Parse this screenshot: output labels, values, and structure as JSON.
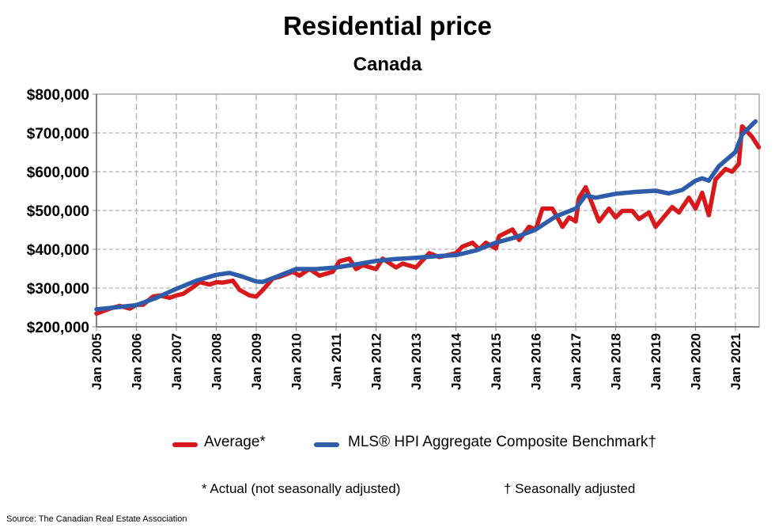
{
  "chart_data": {
    "type": "line",
    "title": "Residential price",
    "subtitle": "Canada",
    "xlabel": "",
    "ylabel": "",
    "ylim": [
      200000,
      800000
    ],
    "xlim": [
      "2005-01",
      "2021-08"
    ],
    "y_ticks": [
      "$200,000",
      "$300,000",
      "$400,000",
      "$500,000",
      "$600,000",
      "$700,000",
      "$800,000"
    ],
    "y_tick_values": [
      200000,
      300000,
      400000,
      500000,
      600000,
      700000,
      800000
    ],
    "x_ticks": [
      "Jan 2005",
      "Jan 2006",
      "Jan 2007",
      "Jan 2008",
      "Jan 2009",
      "Jan 2010",
      "Jan 2011",
      "Jan 2012",
      "Jan 2013",
      "Jan 2014",
      "Jan 2015",
      "Jan 2016",
      "Jan 2017",
      "Jan 2018",
      "Jan 2019",
      "Jan 2020",
      "Jan 2021"
    ],
    "grid": true,
    "legend_position": "bottom",
    "series": [
      {
        "name": "Average*",
        "color": "#d7191c",
        "points": [
          [
            "2005-01",
            234000
          ],
          [
            "2005-05",
            247000
          ],
          [
            "2005-08",
            254000
          ],
          [
            "2005-11",
            247000
          ],
          [
            "2006-01",
            257000
          ],
          [
            "2006-03",
            257000
          ],
          [
            "2006-06",
            278000
          ],
          [
            "2006-08",
            281000
          ],
          [
            "2006-11",
            275000
          ],
          [
            "2007-01",
            281000
          ],
          [
            "2007-03",
            285000
          ],
          [
            "2007-06",
            302000
          ],
          [
            "2007-08",
            315000
          ],
          [
            "2007-11",
            309000
          ],
          [
            "2008-01",
            315000
          ],
          [
            "2008-03",
            314000
          ],
          [
            "2008-06",
            319000
          ],
          [
            "2008-08",
            295000
          ],
          [
            "2008-11",
            281000
          ],
          [
            "2009-01",
            278000
          ],
          [
            "2009-03",
            295000
          ],
          [
            "2009-06",
            325000
          ],
          [
            "2009-08",
            329000
          ],
          [
            "2009-12",
            342000
          ],
          [
            "2010-02",
            332000
          ],
          [
            "2010-05",
            349000
          ],
          [
            "2010-08",
            332000
          ],
          [
            "2010-12",
            342000
          ],
          [
            "2011-02",
            369000
          ],
          [
            "2011-05",
            376000
          ],
          [
            "2011-07",
            349000
          ],
          [
            "2011-09",
            359000
          ],
          [
            "2012-01",
            349000
          ],
          [
            "2012-03",
            376000
          ],
          [
            "2012-07",
            353000
          ],
          [
            "2012-09",
            363000
          ],
          [
            "2013-01",
            353000
          ],
          [
            "2013-05",
            390000
          ],
          [
            "2013-08",
            380000
          ],
          [
            "2014-01",
            390000
          ],
          [
            "2014-03",
            407000
          ],
          [
            "2014-06",
            417000
          ],
          [
            "2014-08",
            400000
          ],
          [
            "2014-10",
            417000
          ],
          [
            "2015-01",
            402000
          ],
          [
            "2015-02",
            434000
          ],
          [
            "2015-06",
            451000
          ],
          [
            "2015-08",
            424000
          ],
          [
            "2015-11",
            458000
          ],
          [
            "2016-01",
            451000
          ],
          [
            "2016-03",
            505000
          ],
          [
            "2016-06",
            505000
          ],
          [
            "2016-09",
            458000
          ],
          [
            "2016-11",
            482000
          ],
          [
            "2017-01",
            472000
          ],
          [
            "2017-02",
            533000
          ],
          [
            "2017-04",
            560000
          ],
          [
            "2017-08",
            472000
          ],
          [
            "2017-11",
            505000
          ],
          [
            "2018-01",
            482000
          ],
          [
            "2018-03",
            499000
          ],
          [
            "2018-06",
            499000
          ],
          [
            "2018-08",
            478000
          ],
          [
            "2018-11",
            495000
          ],
          [
            "2019-01",
            458000
          ],
          [
            "2019-06",
            509000
          ],
          [
            "2019-08",
            495000
          ],
          [
            "2019-11",
            533000
          ],
          [
            "2020-01",
            505000
          ],
          [
            "2020-03",
            546000
          ],
          [
            "2020-05",
            488000
          ],
          [
            "2020-07",
            580000
          ],
          [
            "2020-10",
            607000
          ],
          [
            "2020-12",
            600000
          ],
          [
            "2021-02",
            620000
          ],
          [
            "2021-03",
            717000
          ],
          [
            "2021-06",
            690000
          ],
          [
            "2021-08",
            663000
          ]
        ]
      },
      {
        "name": "MLS® HPI Aggregate Composite Benchmark†",
        "color": "#2e5caa",
        "points": [
          [
            "2005-01",
            245000
          ],
          [
            "2006-01",
            256000
          ],
          [
            "2006-07",
            275000
          ],
          [
            "2007-01",
            298000
          ],
          [
            "2007-07",
            319000
          ],
          [
            "2008-01",
            334000
          ],
          [
            "2008-05",
            339000
          ],
          [
            "2008-09",
            329000
          ],
          [
            "2009-01",
            317000
          ],
          [
            "2009-03",
            316000
          ],
          [
            "2009-07",
            329000
          ],
          [
            "2010-01",
            349000
          ],
          [
            "2010-07",
            349000
          ],
          [
            "2011-01",
            353000
          ],
          [
            "2011-07",
            361000
          ],
          [
            "2012-01",
            370000
          ],
          [
            "2012-07",
            375000
          ],
          [
            "2013-01",
            378000
          ],
          [
            "2013-07",
            382000
          ],
          [
            "2014-01",
            385000
          ],
          [
            "2014-07",
            397000
          ],
          [
            "2015-01",
            417000
          ],
          [
            "2015-07",
            431000
          ],
          [
            "2016-01",
            451000
          ],
          [
            "2016-07",
            485000
          ],
          [
            "2017-01",
            505000
          ],
          [
            "2017-04",
            539000
          ],
          [
            "2017-07",
            533000
          ],
          [
            "2018-01",
            543000
          ],
          [
            "2018-07",
            548000
          ],
          [
            "2019-01",
            551000
          ],
          [
            "2019-05",
            544000
          ],
          [
            "2019-09",
            553000
          ],
          [
            "2020-01",
            577000
          ],
          [
            "2020-03",
            583000
          ],
          [
            "2020-05",
            577000
          ],
          [
            "2020-08",
            614000
          ],
          [
            "2021-01",
            651000
          ],
          [
            "2021-03",
            696000
          ],
          [
            "2021-07",
            730000
          ]
        ]
      }
    ]
  },
  "legend": {
    "average": "Average*",
    "hpi": "MLS® HPI Aggregate Composite Benchmark†"
  },
  "footnotes": {
    "actual": "* Actual (not seasonally adjusted)",
    "seasonal": "† Seasonally adjusted"
  },
  "source": "Source: The Canadian Real Estate Association"
}
